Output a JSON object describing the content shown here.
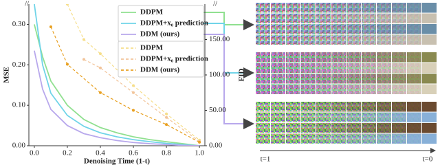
{
  "chart_data": {
    "type": "line",
    "axis_break_label": "//",
    "xlabel": "Denoising Time (1-t)",
    "ylabel": "MSE",
    "y2label": "FID",
    "xlim": [
      -0.033,
      1.033
    ],
    "xticks": [
      {
        "value": 0,
        "label": "0.0"
      },
      {
        "value": 0.2,
        "label": "0.2"
      },
      {
        "value": 0.4,
        "label": "0.4"
      },
      {
        "value": 0.6,
        "label": "0.6"
      },
      {
        "value": 0.8,
        "label": "0.8"
      },
      {
        "value": 1,
        "label": "1.0"
      }
    ],
    "ylim": [
      0,
      0.35
    ],
    "yticks": [
      {
        "value": 0,
        "label": "0.00"
      },
      {
        "value": 0.1,
        "label": "0.10"
      },
      {
        "value": 0.2,
        "label": "0.20"
      },
      {
        "value": 0.3,
        "label": "0.30"
      }
    ],
    "y2lim": [
      0,
      200
    ],
    "y2ticks": [
      {
        "value": 0,
        "label": "0.00"
      },
      {
        "value": 50,
        "label": "50.00"
      },
      {
        "value": 100,
        "label": "100.00"
      },
      {
        "value": 150,
        "label": "150.00"
      }
    ],
    "series": [
      {
        "name": "DDPM",
        "color": "#90e090",
        "style": "solid",
        "x": [
          0,
          0.05,
          0.1,
          0.2,
          0.3,
          0.4,
          0.5,
          0.6,
          0.7,
          0.8,
          0.9,
          1.0
        ],
        "values": [
          0.3,
          0.22,
          0.16,
          0.1,
          0.065,
          0.045,
          0.032,
          0.022,
          0.015,
          0.01,
          0.005,
          0
        ]
      },
      {
        "name": "DDPM+x₀ prediction",
        "color": "#70d4e8",
        "style": "solid",
        "x": [
          0,
          0.05,
          0.1,
          0.2,
          0.3,
          0.4,
          0.5,
          0.6,
          0.7,
          0.8,
          0.9,
          1.0
        ],
        "values": [
          0.35,
          0.2,
          0.13,
          0.075,
          0.048,
          0.032,
          0.022,
          0.015,
          0.01,
          0.006,
          0.003,
          0
        ]
      },
      {
        "name": "DDM (ours)",
        "color": "#b8a8ec",
        "style": "solid",
        "x": [
          0,
          0.05,
          0.1,
          0.2,
          0.3,
          0.4,
          0.5,
          0.6,
          0.7,
          0.8,
          0.9,
          1.0
        ],
        "values": [
          0.235,
          0.14,
          0.09,
          0.05,
          0.03,
          0.02,
          0.013,
          0.008,
          0.005,
          0.003,
          0.001,
          0
        ]
      },
      {
        "name": "DDPM",
        "color": "#f6de8a",
        "style": "dashed",
        "axis": "y2",
        "x": [
          0.2,
          0.3,
          0.4,
          0.6,
          0.8,
          1.0
        ],
        "values": [
          200,
          150,
          130,
          85,
          45,
          8
        ]
      },
      {
        "name": "DDPM+x₀ prediction",
        "color": "#f2c49a",
        "style": "dashed",
        "axis": "y2",
        "x": [
          0.3,
          0.4,
          0.6,
          0.8,
          1.0
        ],
        "values": [
          122,
          110,
          75,
          40,
          6
        ]
      },
      {
        "name": "DDM (ours)",
        "color": "#e8a020",
        "style": "dashed",
        "axis": "y2",
        "x": [
          0.1,
          0.2,
          0.4,
          0.6,
          0.8,
          1.0
        ],
        "values": [
          168,
          115,
          75,
          50,
          30,
          5
        ]
      }
    ],
    "timeline": {
      "start": "t=1",
      "end": "t=0"
    }
  }
}
